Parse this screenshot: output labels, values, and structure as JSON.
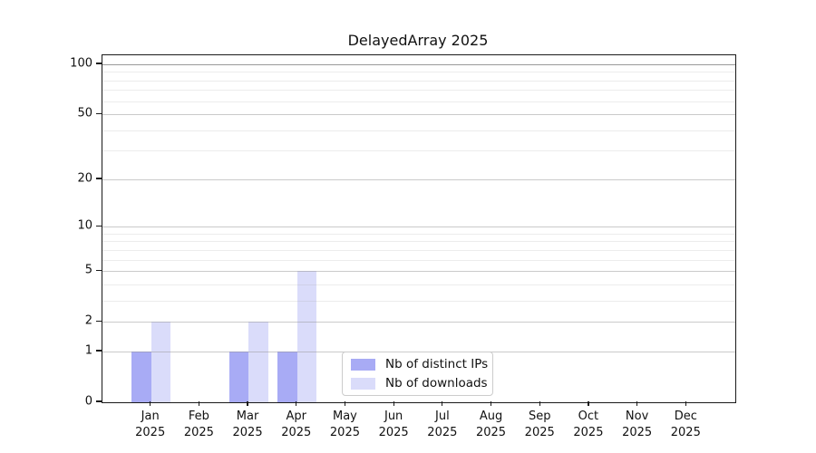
{
  "chart_data": {
    "type": "bar",
    "title": "DelayedArray 2025",
    "categories": [
      "Jan",
      "Feb",
      "Mar",
      "Apr",
      "May",
      "Jun",
      "Jul",
      "Aug",
      "Sep",
      "Oct",
      "Nov",
      "Dec"
    ],
    "category_year": "2025",
    "series": [
      {
        "name": "Nb of distinct IPs",
        "color": "#a8abf5",
        "values": [
          1,
          0,
          1,
          1,
          0,
          0,
          0,
          0,
          0,
          0,
          0,
          0
        ]
      },
      {
        "name": "Nb of downloads",
        "color": "#dadcfa",
        "values": [
          2,
          0,
          2,
          5,
          0,
          0,
          0,
          0,
          0,
          0,
          0,
          0
        ]
      }
    ],
    "xlabel": "",
    "ylabel": "",
    "yscale": "log1p",
    "yticks": [
      0,
      1,
      2,
      5,
      10,
      20,
      50,
      100
    ],
    "minor_yticks": [
      3,
      4,
      6,
      7,
      8,
      9,
      30,
      40,
      60,
      70,
      80,
      90
    ],
    "ylim": [
      0,
      113
    ],
    "grid": true,
    "legend_position": "lower center"
  }
}
